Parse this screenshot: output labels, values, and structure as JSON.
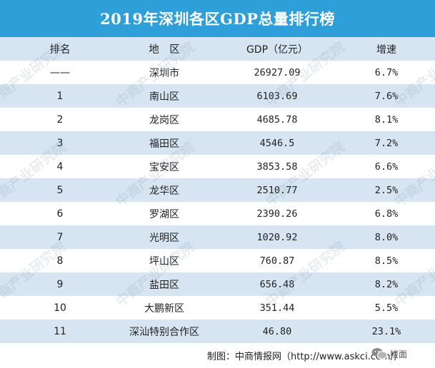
{
  "title": "2019年深圳各区GDP总量排行榜",
  "table": {
    "headers": [
      "排名",
      "地　区",
      "GDP（亿元）",
      "增速"
    ],
    "rows": [
      {
        "rank": "——",
        "district": "深圳市",
        "gdp": "26927.09",
        "growth": "6.7%"
      },
      {
        "rank": "1",
        "district": "南山区",
        "gdp": "6103.69",
        "growth": "7.6%"
      },
      {
        "rank": "2",
        "district": "龙岗区",
        "gdp": "4685.78",
        "growth": "8.1%"
      },
      {
        "rank": "3",
        "district": "福田区",
        "gdp": "4546.5",
        "growth": "7.2%"
      },
      {
        "rank": "4",
        "district": "宝安区",
        "gdp": "3853.58",
        "growth": "6.6%"
      },
      {
        "rank": "5",
        "district": "龙华区",
        "gdp": "2510.77",
        "growth": "2.5%"
      },
      {
        "rank": "6",
        "district": "罗湖区",
        "gdp": "2390.26",
        "growth": "6.8%"
      },
      {
        "rank": "7",
        "district": "光明区",
        "gdp": "1020.92",
        "growth": "8.0%"
      },
      {
        "rank": "8",
        "district": "坪山区",
        "gdp": "760.87",
        "growth": "8.5%"
      },
      {
        "rank": "9",
        "district": "盐田区",
        "gdp": "656.48",
        "growth": "8.2%"
      },
      {
        "rank": "10",
        "district": "大鹏新区",
        "gdp": "351.44",
        "growth": "5.5%"
      },
      {
        "rank": "11",
        "district": "深汕特别合作区",
        "gdp": "46.80",
        "growth": "23.1%"
      }
    ]
  },
  "footer": "制图：中商情报网（http://www.askci.com/）",
  "watermark_text": "中商产业研究院",
  "badge_label": "楼面",
  "colors": {
    "title_bg": "#2e9fd8",
    "stripe": "#d7e4f1"
  },
  "icons": {
    "badge": "wechat-icon"
  }
}
